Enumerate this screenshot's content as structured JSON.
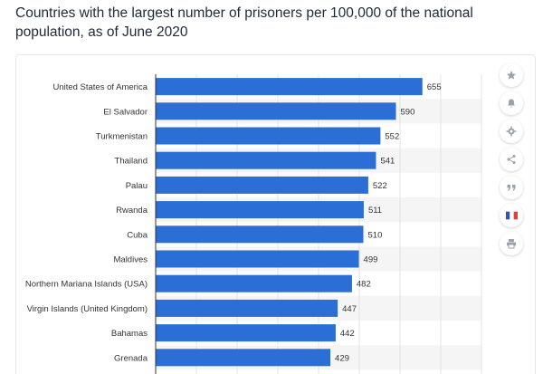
{
  "header": {
    "title": "Countries with the largest number of prisoners per 100,000 of the national population, as of June 2020"
  },
  "toolbar": {
    "buttons": [
      {
        "icon": "star-icon"
      },
      {
        "icon": "bell-icon"
      },
      {
        "icon": "gear-icon"
      },
      {
        "icon": "share-icon"
      },
      {
        "icon": "quote-icon"
      },
      {
        "icon": "french-flag-icon"
      },
      {
        "icon": "print-icon"
      }
    ]
  },
  "colors": {
    "bar": "#2b6fd6",
    "band": "#f5f5f5",
    "grid": "#e3e3e3",
    "axis": "#333333",
    "flag_blue": "#2b54b8",
    "flag_red": "#e0413a"
  },
  "chart_data": {
    "type": "bar",
    "orientation": "horizontal",
    "categories": [
      "United States of America",
      "El Salvador",
      "Turkmenistan",
      "Thailand",
      "Palau",
      "Rwanda",
      "Cuba",
      "Maldives",
      "Northern Mariana Islands (USA)",
      "Virgin Islands (United Kingdom)",
      "Bahamas",
      "Grenada"
    ],
    "values": [
      655,
      590,
      552,
      541,
      522,
      511,
      510,
      499,
      482,
      447,
      442,
      429
    ],
    "xlim": [
      0,
      800
    ],
    "grid": true,
    "data_labels": true
  }
}
